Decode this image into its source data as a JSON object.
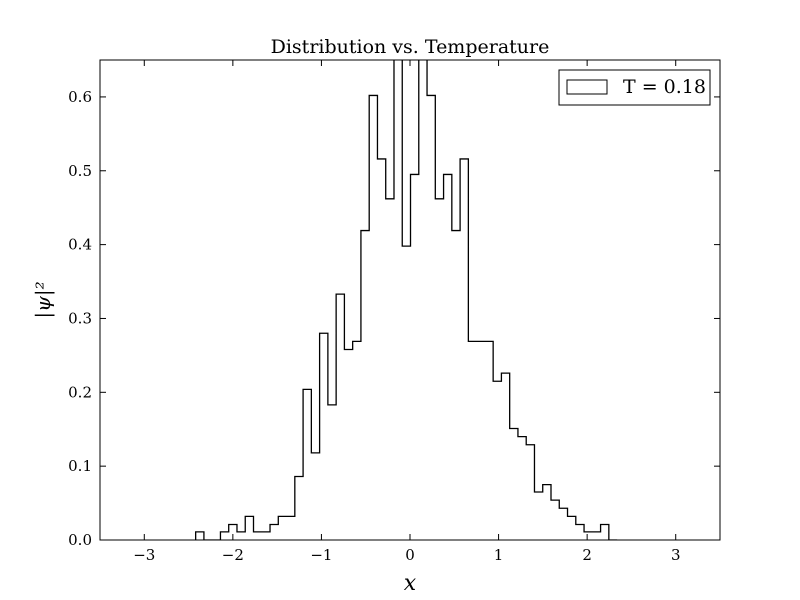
{
  "chart_data": {
    "type": "histogram",
    "title": "Distribution vs. Temperature",
    "xlabel": "x",
    "ylabel": "|ψ|²",
    "xlim": [
      -3.5,
      3.5
    ],
    "ylim": [
      0,
      0.65
    ],
    "xticks": [
      -3,
      -2,
      -1,
      0,
      1,
      2,
      3
    ],
    "xtick_labels": [
      "−3",
      "−2",
      "−1",
      "0",
      "1",
      "2",
      "3"
    ],
    "yticks": [
      0.0,
      0.1,
      0.2,
      0.3,
      0.4,
      0.5,
      0.6
    ],
    "ytick_labels": [
      "0.0",
      "0.1",
      "0.2",
      "0.3",
      "0.4",
      "0.5",
      "0.6"
    ],
    "grid": false,
    "legend": {
      "placement": "top-right",
      "label": "T = 0.18"
    },
    "series": [
      {
        "name": "T = 0.18",
        "style": "step",
        "color": "#000000",
        "bin_start": -2.42,
        "bin_width": 0.0933,
        "values": [
          0.011,
          0.0,
          0.0,
          0.011,
          0.021,
          0.011,
          0.032,
          0.011,
          0.011,
          0.021,
          0.032,
          0.032,
          0.086,
          0.204,
          0.118,
          0.28,
          0.183,
          0.333,
          0.258,
          0.269,
          0.419,
          0.602,
          0.516,
          0.462,
          0.7,
          0.398,
          0.495,
          0.7,
          0.602,
          0.462,
          0.495,
          0.419,
          0.516,
          0.269,
          0.269,
          0.269,
          0.215,
          0.226,
          0.151,
          0.14,
          0.129,
          0.065,
          0.075,
          0.054,
          0.043,
          0.032,
          0.021,
          0.011,
          0.011,
          0.021,
          0.0
        ]
      }
    ]
  }
}
